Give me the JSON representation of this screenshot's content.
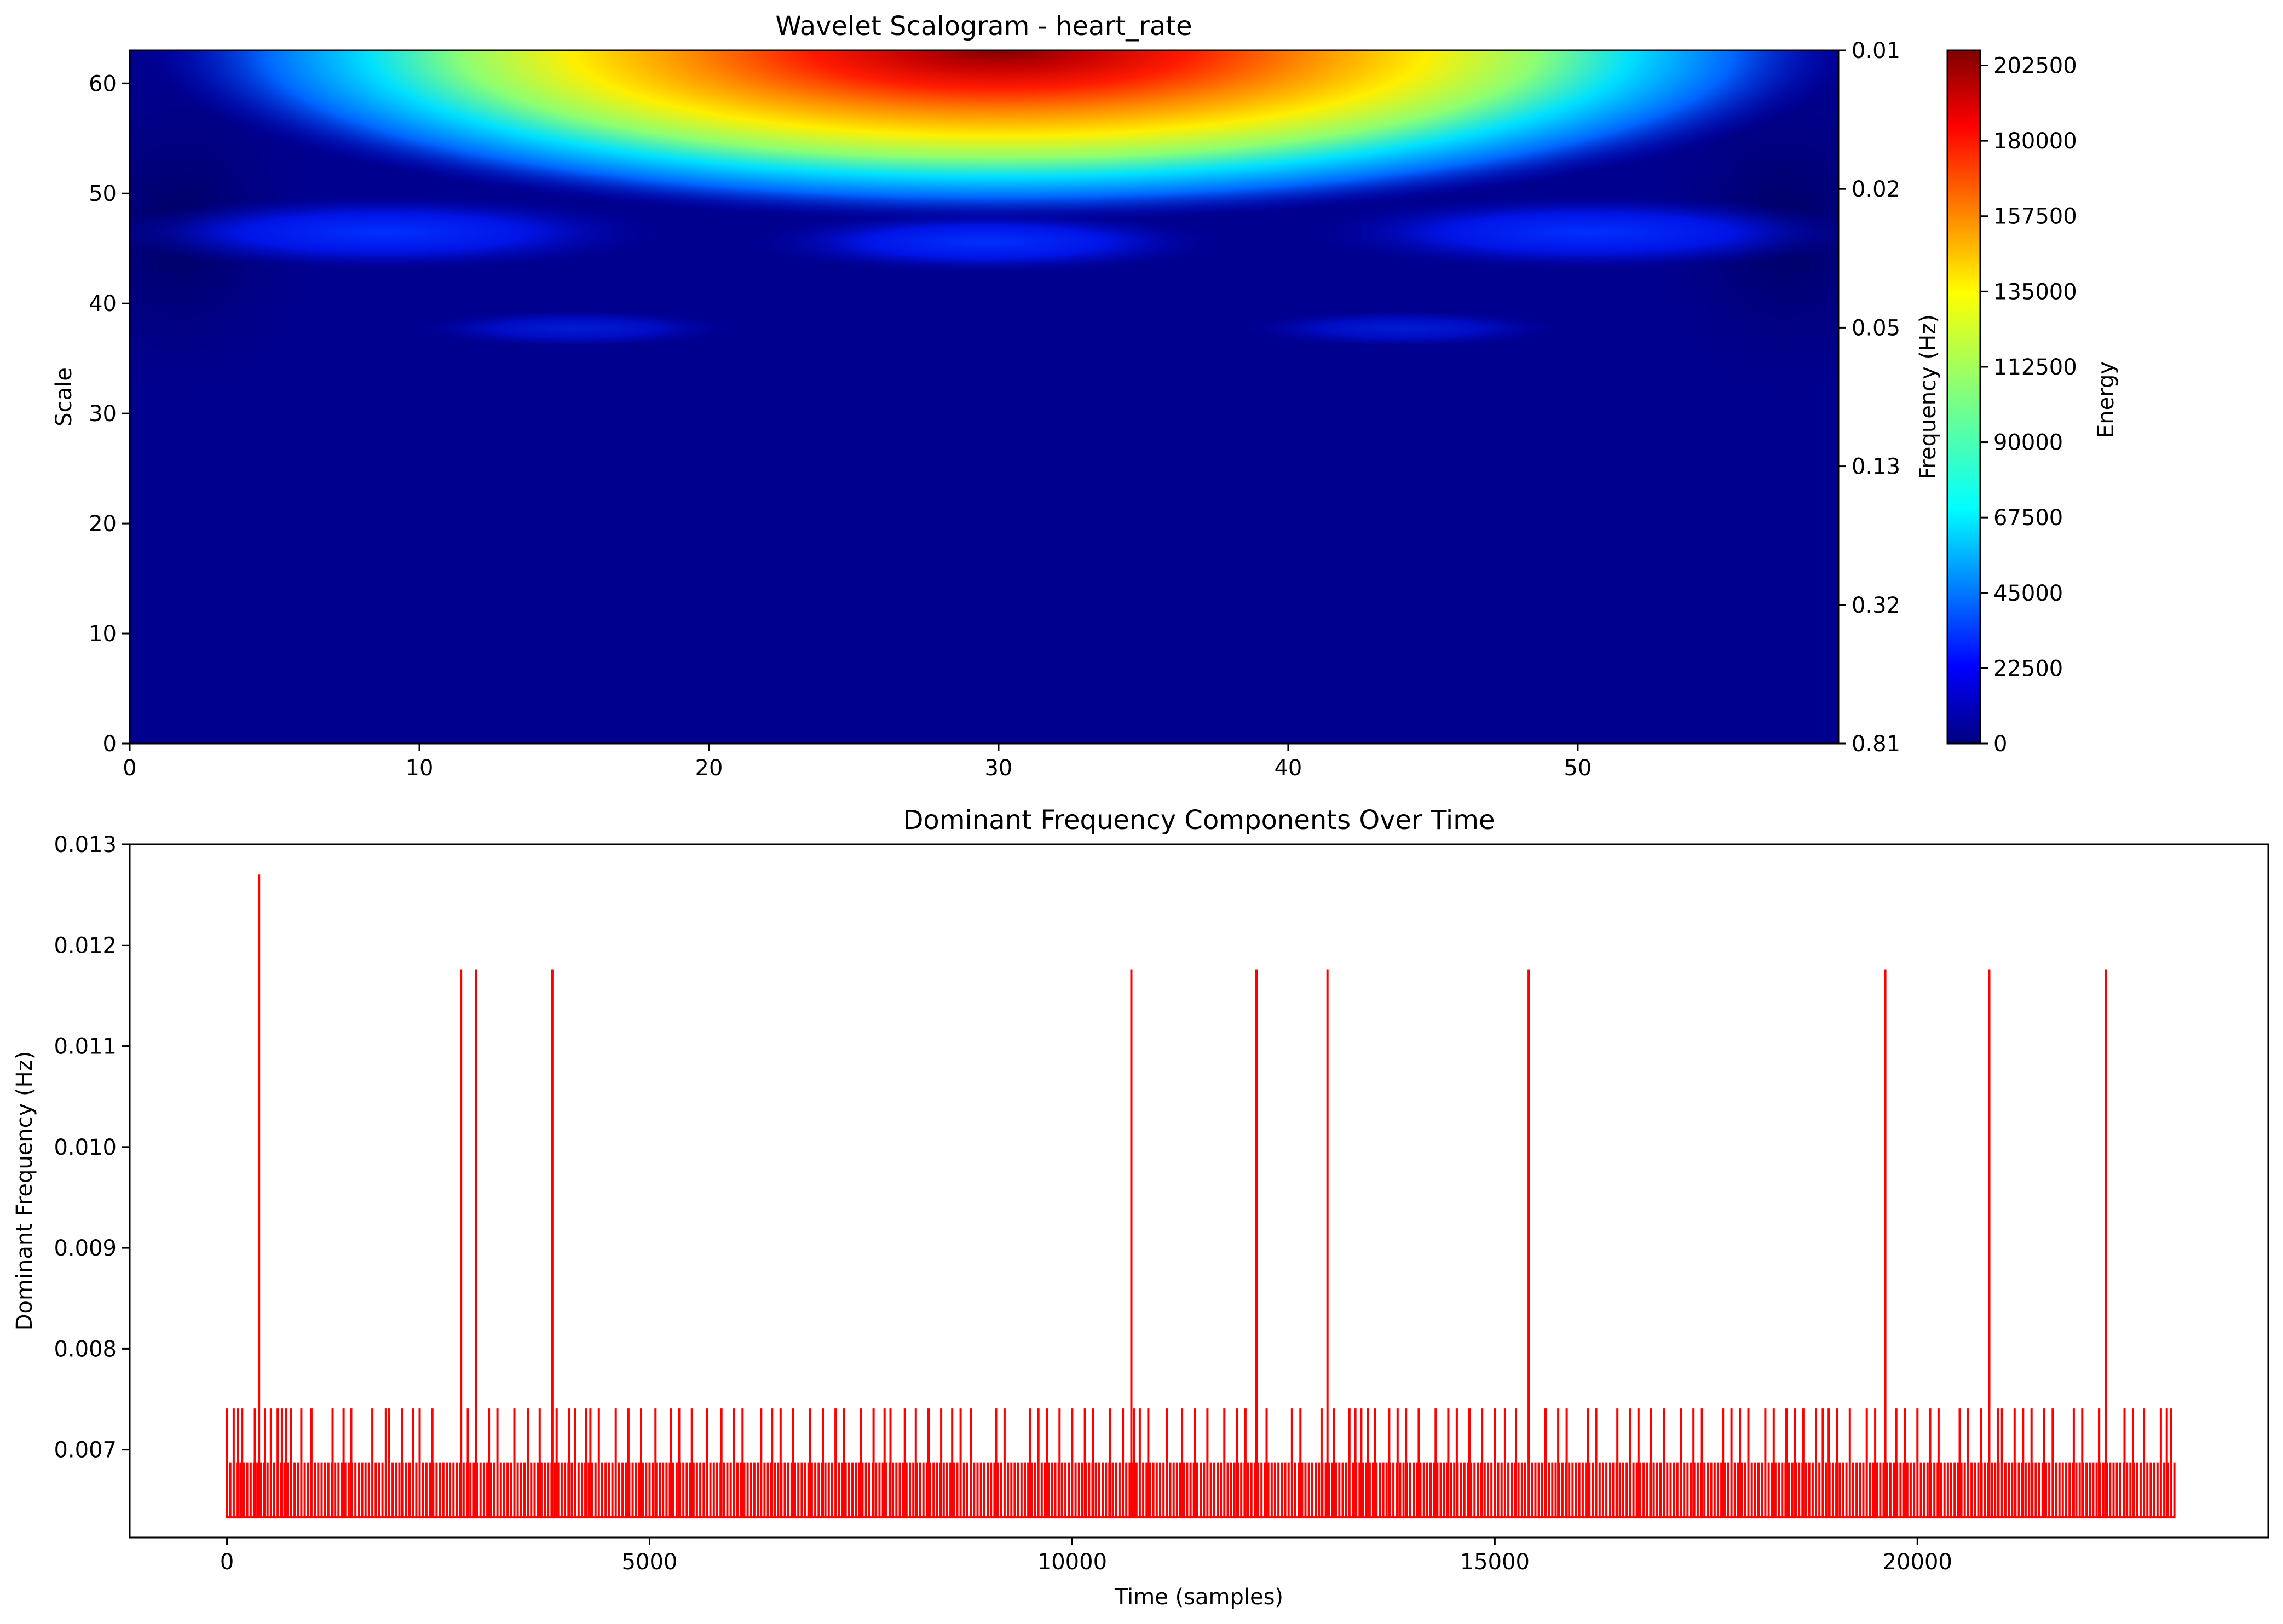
{
  "chart_data": [
    {
      "type": "heatmap",
      "title": "Wavelet Scalogram - heart_rate",
      "ylabel": "Scale",
      "ylabel_right": "Frequency (Hz)",
      "xlim": [
        0,
        59
      ],
      "ylim": [
        0,
        63
      ],
      "x_ticks": [
        0,
        10,
        20,
        30,
        40,
        50
      ],
      "x_tick_labels": [
        "0",
        "10",
        "20",
        "30",
        "40",
        "50"
      ],
      "y_ticks": [
        0,
        10,
        20,
        30,
        40,
        50,
        60
      ],
      "y_tick_labels": [
        "0",
        "10",
        "20",
        "30",
        "40",
        "50",
        "60"
      ],
      "freq_ticks": [
        {
          "scale": 63,
          "label": "0.01"
        },
        {
          "scale": 50.4,
          "label": "0.02"
        },
        {
          "scale": 37.8,
          "label": "0.05"
        },
        {
          "scale": 25.2,
          "label": "0.13"
        },
        {
          "scale": 12.6,
          "label": "0.32"
        },
        {
          "scale": 0,
          "label": "0.81"
        }
      ],
      "colormap": "jet",
      "colorbar": {
        "label": "Energy",
        "min": 0,
        "max": 207000,
        "ticks": [
          0,
          22500,
          45000,
          67500,
          90000,
          112500,
          135000,
          157500,
          180000,
          202500
        ],
        "tick_labels": [
          "0",
          "22500",
          "45000",
          "67500",
          "90000",
          "112500",
          "135000",
          "157500",
          "180000",
          "202500"
        ]
      },
      "energy_features": [
        {
          "desc": "peak band at top scales",
          "time_center": 30,
          "scale_center": 63,
          "peak_energy": 207000
        },
        {
          "desc": "weak lobe left",
          "time_center": 9,
          "scale_center": 45.5,
          "peak_energy": 35000
        },
        {
          "desc": "weak lobe center",
          "time_center": 30,
          "scale_center": 45,
          "peak_energy": 30000
        },
        {
          "desc": "weak lobe right",
          "time_center": 51,
          "scale_center": 45.5,
          "peak_energy": 35000
        }
      ]
    },
    {
      "type": "line",
      "title": "Dominant Frequency Components Over Time",
      "xlabel": "Time (samples)",
      "ylabel": "Dominant Frequency (Hz)",
      "xlim": [
        -1150,
        24150
      ],
      "ylim": [
        0.00613,
        0.013
      ],
      "x_ticks": [
        0,
        5000,
        10000,
        15000,
        20000
      ],
      "x_tick_labels": [
        "0",
        "5000",
        "10000",
        "15000",
        "20000"
      ],
      "y_ticks": [
        0.007,
        0.008,
        0.009,
        0.01,
        0.011,
        0.012,
        0.013
      ],
      "y_tick_labels": [
        "0.007",
        "0.008",
        "0.009",
        "0.010",
        "0.011",
        "0.012",
        "0.013"
      ],
      "color": "#ff0000",
      "x_range": [
        0,
        23050
      ],
      "baseline_level": 0.00633,
      "dense_level": 0.00687,
      "dense_spacing_samples": 40,
      "mid_level": 0.00741,
      "mid_level_times": [
        0,
        80,
        130,
        180,
        330,
        450,
        520,
        600,
        650,
        700,
        760,
        880,
        1000,
        1250,
        1380,
        1470,
        1720,
        1880,
        1920,
        2070,
        2200,
        2280,
        2430,
        2770,
        2850,
        3100,
        3200,
        3400,
        3560,
        3700,
        3900,
        4050,
        4120,
        4250,
        4300,
        4400,
        4600,
        4750,
        4900,
        5070,
        5250,
        5350,
        5500,
        5680,
        5850,
        6000,
        6100,
        6320,
        6450,
        6550,
        6700,
        6900,
        7050,
        7200,
        7300,
        7500,
        7650,
        7780,
        7850,
        8020,
        8150,
        8300,
        8450,
        8580,
        8680,
        8800,
        9100,
        9200,
        9500,
        9600,
        9700,
        9850,
        10000,
        10150,
        10250,
        10450,
        10600,
        10730,
        10800,
        10900,
        11120,
        11300,
        11450,
        11600,
        11800,
        11950,
        12050,
        12300,
        12600,
        12700,
        12950,
        13100,
        13280,
        13350,
        13420,
        13500,
        13580,
        13750,
        13850,
        13950,
        14100,
        14300,
        14450,
        14550,
        14700,
        14850,
        15000,
        15120,
        15250,
        15600,
        15750,
        15850,
        16100,
        16200,
        16450,
        16600,
        16700,
        16850,
        17000,
        17200,
        17350,
        17450,
        17700,
        17800,
        17900,
        18000,
        18200,
        18300,
        18450,
        18550,
        18650,
        18800,
        18880,
        18950,
        19050,
        19200,
        19400,
        19500,
        19750,
        19850,
        20000,
        20150,
        20250,
        20500,
        20600,
        20750,
        20950,
        21000,
        21150,
        21250,
        21350,
        21500,
        21600,
        21850,
        21950,
        22150,
        22450,
        22550,
        22680,
        22880,
        22950,
        23000
      ],
      "peak_level": 0.01176,
      "peak_times": [
        2770,
        2950,
        3850,
        10700,
        12180,
        13020,
        15400,
        19620,
        20850,
        22230
      ],
      "max_point": {
        "x": 380,
        "y": 0.0127
      }
    }
  ]
}
